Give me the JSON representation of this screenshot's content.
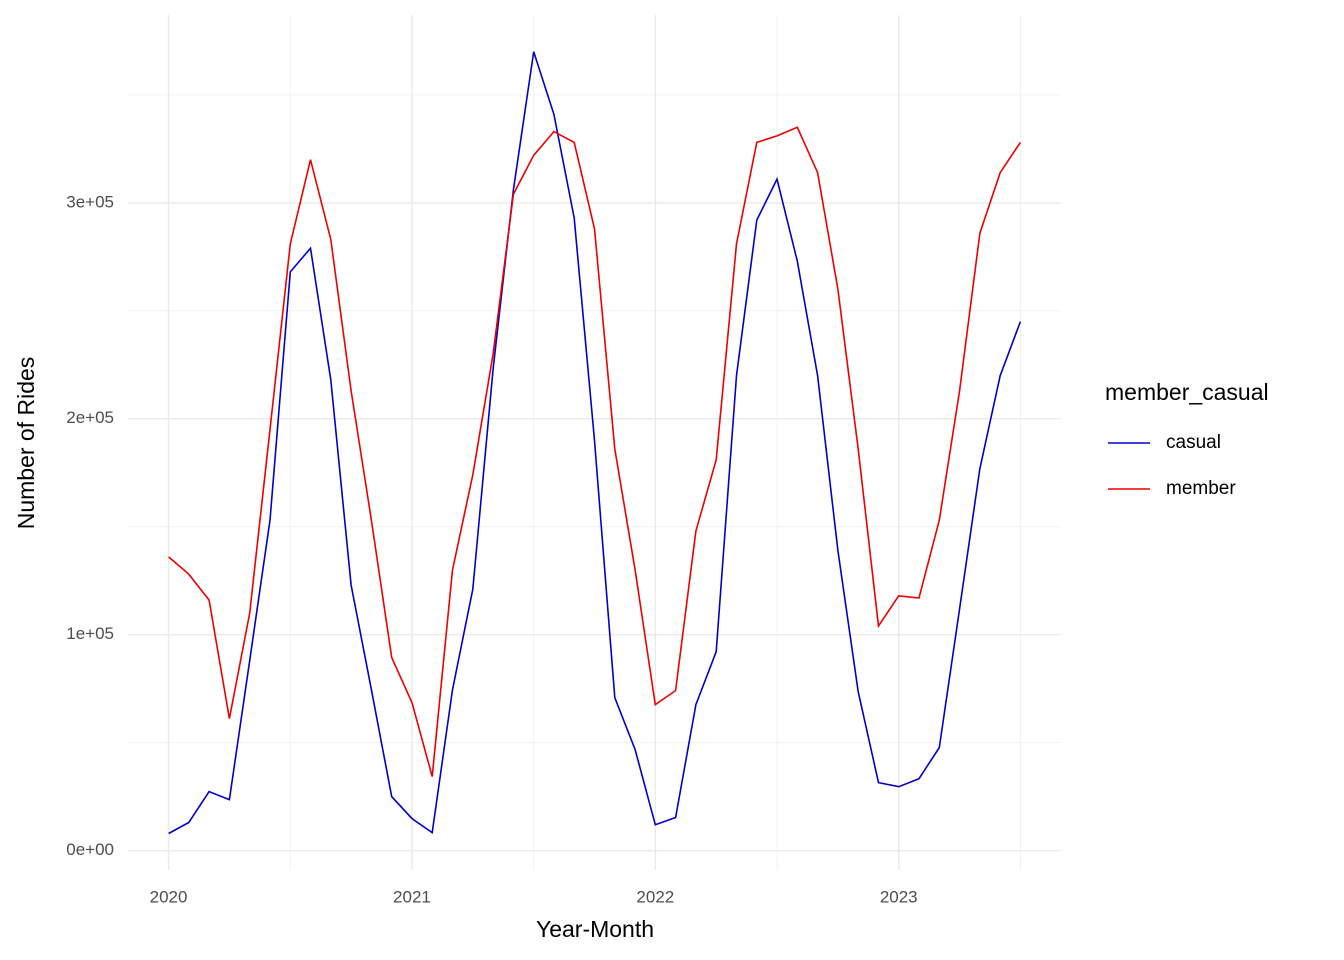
{
  "chart_data": {
    "type": "line",
    "x_label": "Year-Month",
    "y_label": "Number of Rides",
    "legend_title": "member_casual",
    "legend": "right",
    "grid": true,
    "x": [
      "2020-01",
      "2020-02",
      "2020-03",
      "2020-04",
      "2020-05",
      "2020-06",
      "2020-07",
      "2020-08",
      "2020-09",
      "2020-10",
      "2020-11",
      "2020-12",
      "2021-01",
      "2021-02",
      "2021-03",
      "2021-04",
      "2021-05",
      "2021-06",
      "2021-07",
      "2021-08",
      "2021-09",
      "2021-10",
      "2021-11",
      "2021-12",
      "2022-01",
      "2022-02",
      "2022-03",
      "2022-04",
      "2022-05",
      "2022-06",
      "2022-07",
      "2022-08",
      "2022-09",
      "2022-10",
      "2022-11",
      "2022-12",
      "2023-01",
      "2023-02",
      "2023-03",
      "2023-04",
      "2023-05",
      "2023-06",
      "2023-07"
    ],
    "series": [
      {
        "name": "casual",
        "color": "#0000cd",
        "values": [
          7900,
          13000,
          27300,
          23600,
          88000,
          153000,
          268000,
          279000,
          218000,
          123000,
          74500,
          25000,
          14800,
          8300,
          74500,
          121000,
          223000,
          306000,
          370000,
          341000,
          293000,
          190000,
          70800,
          46800,
          12000,
          15300,
          67600,
          92100,
          220000,
          292000,
          311000,
          273000,
          220000,
          139000,
          73600,
          31500,
          29600,
          33300,
          47700,
          112000,
          177000,
          220000,
          245000
        ]
      },
      {
        "name": "member",
        "color": "#ee0000",
        "values": [
          136000,
          128000,
          116000,
          61100,
          110000,
          195000,
          281000,
          320000,
          283000,
          213000,
          153000,
          89400,
          68500,
          34300,
          130000,
          174000,
          230000,
          304000,
          322000,
          333000,
          328000,
          288000,
          186000,
          130000,
          67600,
          74100,
          148000,
          181000,
          281000,
          328000,
          331000,
          335000,
          314000,
          260000,
          186000,
          104000,
          118000,
          117000,
          153000,
          213000,
          286000,
          314000,
          328000
        ]
      }
    ],
    "xlim": [
      "2019-11",
      "2023-09"
    ],
    "xticks": [
      {
        "value": "2020-01",
        "label": "2020"
      },
      {
        "value": "2021-01",
        "label": "2021"
      },
      {
        "value": "2022-01",
        "label": "2022"
      },
      {
        "value": "2023-01",
        "label": "2023"
      }
    ],
    "ylim": [
      -9000,
      387000
    ],
    "yticks": [
      {
        "value": 0,
        "label": "0e+00"
      },
      {
        "value": 100000,
        "label": "1e+05"
      },
      {
        "value": 200000,
        "label": "2e+05"
      },
      {
        "value": 300000,
        "label": "3e+05"
      }
    ]
  }
}
